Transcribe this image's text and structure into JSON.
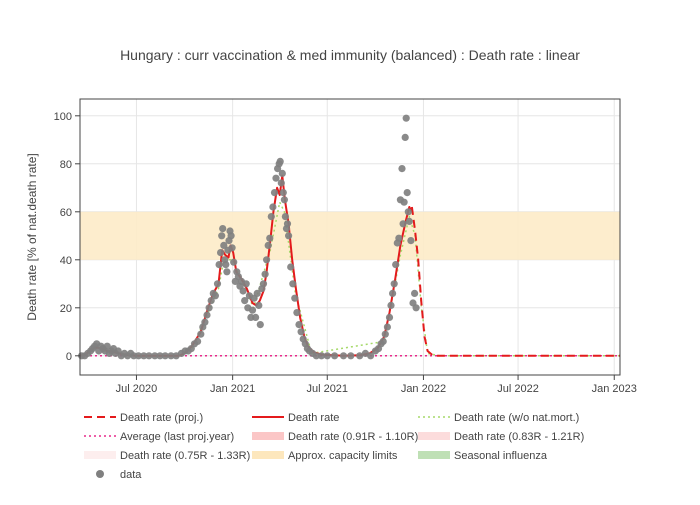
{
  "chart_data": {
    "type": "line",
    "title": "Hungary : curr vaccination & med immunity (balanced) : Death rate : linear",
    "ylabel": "Death rate [% of nat.death rate]",
    "xlabel": "",
    "ylim": [
      -8,
      107
    ],
    "xlim": [
      "2020-03-15",
      "2023-01-12"
    ],
    "y_ticks": [
      0,
      20,
      40,
      60,
      80,
      100
    ],
    "x_ticks": [
      {
        "date": "2020-07-01",
        "label": "Jul 2020"
      },
      {
        "date": "2021-01-01",
        "label": "Jan 2021"
      },
      {
        "date": "2021-07-01",
        "label": "Jul 2021"
      },
      {
        "date": "2022-01-01",
        "label": "Jan 2022"
      },
      {
        "date": "2022-07-01",
        "label": "Jul 2022"
      },
      {
        "date": "2023-01-01",
        "label": "Jan 2023"
      }
    ],
    "grid": true,
    "bands": [
      {
        "name": "Approx. capacity limits",
        "y0": 40,
        "y1": 60,
        "color": "#fdebc8"
      }
    ],
    "series": [
      {
        "name": "Death rate (proj.)",
        "color": "#e41a1c",
        "dash": "dash",
        "width": 2,
        "points": [
          [
            "2021-12-10",
            62
          ],
          [
            "2021-12-16",
            52
          ],
          [
            "2021-12-22",
            40
          ],
          [
            "2021-12-28",
            22
          ],
          [
            "2022-01-03",
            8
          ],
          [
            "2022-01-09",
            2
          ],
          [
            "2022-01-20",
            0
          ],
          [
            "2022-03-01",
            0
          ],
          [
            "2022-07-01",
            0
          ],
          [
            "2023-01-12",
            0
          ]
        ]
      },
      {
        "name": "Average (last proj.year)",
        "color": "#e7298a",
        "dash": "dot",
        "width": 1.5,
        "points": [
          [
            "2020-03-15",
            0
          ],
          [
            "2023-01-12",
            0
          ]
        ]
      },
      {
        "name": "Death rate (0.75R - 1.33R)",
        "color": "#fde0e0",
        "legend_only": true
      },
      {
        "name": "Death rate",
        "color": "#e41a1c",
        "dash": "solid",
        "width": 2,
        "points": [
          [
            "2020-03-15",
            0
          ],
          [
            "2020-03-25",
            0.5
          ],
          [
            "2020-04-05",
            2.5
          ],
          [
            "2020-04-15",
            3.5
          ],
          [
            "2020-04-25",
            3
          ],
          [
            "2020-05-05",
            2
          ],
          [
            "2020-05-20",
            1.5
          ],
          [
            "2020-06-01",
            0.8
          ],
          [
            "2020-06-15",
            0.3
          ],
          [
            "2020-07-01",
            0
          ],
          [
            "2020-09-01",
            0
          ],
          [
            "2020-09-20",
            0
          ],
          [
            "2020-10-01",
            1
          ],
          [
            "2020-10-15",
            4
          ],
          [
            "2020-11-01",
            10
          ],
          [
            "2020-11-15",
            20
          ],
          [
            "2020-11-25",
            26
          ],
          [
            "2020-12-05",
            30
          ],
          [
            "2020-12-12",
            44
          ],
          [
            "2020-12-18",
            42
          ],
          [
            "2020-12-24",
            41
          ],
          [
            "2020-12-28",
            46
          ],
          [
            "2021-01-02",
            43
          ],
          [
            "2021-01-08",
            35
          ],
          [
            "2021-01-18",
            32
          ],
          [
            "2021-01-28",
            28
          ],
          [
            "2021-02-08",
            22
          ],
          [
            "2021-02-15",
            21
          ],
          [
            "2021-02-22",
            23
          ],
          [
            "2021-03-01",
            27
          ],
          [
            "2021-03-07",
            35
          ],
          [
            "2021-03-14",
            48
          ],
          [
            "2021-03-20",
            60
          ],
          [
            "2021-03-27",
            70
          ],
          [
            "2021-04-01",
            67
          ],
          [
            "2021-04-06",
            75
          ],
          [
            "2021-04-11",
            65
          ],
          [
            "2021-04-18",
            55
          ],
          [
            "2021-04-25",
            40
          ],
          [
            "2021-05-02",
            28
          ],
          [
            "2021-05-10",
            16
          ],
          [
            "2021-05-18",
            8
          ],
          [
            "2021-05-25",
            4
          ],
          [
            "2021-06-05",
            1.5
          ],
          [
            "2021-06-20",
            0.5
          ],
          [
            "2021-08-01",
            0
          ],
          [
            "2021-09-01",
            0.2
          ],
          [
            "2021-09-20",
            1
          ],
          [
            "2021-10-05",
            3
          ],
          [
            "2021-10-18",
            8
          ],
          [
            "2021-10-28",
            18
          ],
          [
            "2021-11-08",
            32
          ],
          [
            "2021-11-18",
            46
          ],
          [
            "2021-11-28",
            56
          ],
          [
            "2021-12-05",
            62
          ],
          [
            "2021-12-10",
            60
          ]
        ]
      },
      {
        "name": "Death rate (0.91R - 1.10R)",
        "color": "#fbcaca",
        "legend_only": true
      },
      {
        "name": "Approx. capacity limits",
        "color": "#fde8c0",
        "legend_only": true
      },
      {
        "name": "Death rate (w/o nat.mort.)",
        "color": "#a6d96a",
        "dash": "dot",
        "width": 1.5,
        "points": [
          [
            "2020-10-15",
            3
          ],
          [
            "2020-11-15",
            18
          ],
          [
            "2020-12-05",
            28
          ],
          [
            "2020-12-15",
            40
          ],
          [
            "2021-01-01",
            40
          ],
          [
            "2021-02-10",
            20
          ],
          [
            "2021-03-14",
            44
          ],
          [
            "2021-04-01",
            64
          ],
          [
            "2021-04-10",
            60
          ],
          [
            "2021-05-01",
            26
          ],
          [
            "2021-06-01",
            1
          ],
          [
            "2021-10-18",
            6
          ],
          [
            "2021-11-18",
            42
          ],
          [
            "2021-12-05",
            58
          ],
          [
            "2021-12-16",
            50
          ],
          [
            "2021-12-28",
            20
          ],
          [
            "2022-01-09",
            1
          ],
          [
            "2022-02-01",
            0
          ],
          [
            "2023-01-12",
            0
          ]
        ]
      },
      {
        "name": "Death rate (0.83R - 1.21R)",
        "color": "#fcdcdc",
        "legend_only": true
      },
      {
        "name": "Seasonal influenza",
        "color": "#b8dcb0",
        "legend_only": true
      },
      {
        "name": "data",
        "type": "scatter",
        "color": "#808080",
        "points": [
          [
            "2020-03-18",
            0
          ],
          [
            "2020-03-24",
            0
          ],
          [
            "2020-03-30",
            1
          ],
          [
            "2020-04-04",
            2
          ],
          [
            "2020-04-08",
            3
          ],
          [
            "2020-04-12",
            4
          ],
          [
            "2020-04-16",
            5
          ],
          [
            "2020-04-20",
            2
          ],
          [
            "2020-04-24",
            4
          ],
          [
            "2020-04-28",
            3
          ],
          [
            "2020-05-02",
            2
          ],
          [
            "2020-05-06",
            4
          ],
          [
            "2020-05-10",
            1
          ],
          [
            "2020-05-14",
            2
          ],
          [
            "2020-05-18",
            3
          ],
          [
            "2020-05-22",
            1
          ],
          [
            "2020-05-27",
            2
          ],
          [
            "2020-06-02",
            0
          ],
          [
            "2020-06-08",
            1
          ],
          [
            "2020-06-14",
            0
          ],
          [
            "2020-06-20",
            1
          ],
          [
            "2020-06-26",
            0
          ],
          [
            "2020-07-05",
            0
          ],
          [
            "2020-07-15",
            0
          ],
          [
            "2020-07-25",
            0
          ],
          [
            "2020-08-05",
            0
          ],
          [
            "2020-08-15",
            0
          ],
          [
            "2020-08-25",
            0
          ],
          [
            "2020-09-05",
            0
          ],
          [
            "2020-09-15",
            0
          ],
          [
            "2020-09-25",
            1
          ],
          [
            "2020-10-02",
            2
          ],
          [
            "2020-10-08",
            2
          ],
          [
            "2020-10-14",
            3
          ],
          [
            "2020-10-20",
            5
          ],
          [
            "2020-10-26",
            6
          ],
          [
            "2020-11-01",
            9
          ],
          [
            "2020-11-05",
            12
          ],
          [
            "2020-11-09",
            14
          ],
          [
            "2020-11-13",
            17
          ],
          [
            "2020-11-17",
            20
          ],
          [
            "2020-11-21",
            23
          ],
          [
            "2020-11-25",
            26
          ],
          [
            "2020-11-29",
            25
          ],
          [
            "2020-12-03",
            30
          ],
          [
            "2020-12-06",
            38
          ],
          [
            "2020-12-09",
            43
          ],
          [
            "2020-12-11",
            50
          ],
          [
            "2020-12-13",
            53
          ],
          [
            "2020-12-15",
            46
          ],
          [
            "2020-12-17",
            40
          ],
          [
            "2020-12-19",
            38
          ],
          [
            "2020-12-21",
            35
          ],
          [
            "2020-12-23",
            44
          ],
          [
            "2020-12-25",
            48
          ],
          [
            "2020-12-27",
            52
          ],
          [
            "2020-12-29",
            50
          ],
          [
            "2020-12-31",
            45
          ],
          [
            "2021-01-03",
            39
          ],
          [
            "2021-01-06",
            31
          ],
          [
            "2021-01-09",
            35
          ],
          [
            "2021-01-12",
            33
          ],
          [
            "2021-01-15",
            29
          ],
          [
            "2021-01-18",
            31
          ],
          [
            "2021-01-21",
            27
          ],
          [
            "2021-01-24",
            23
          ],
          [
            "2021-01-27",
            30
          ],
          [
            "2021-01-30",
            20
          ],
          [
            "2021-02-02",
            25
          ],
          [
            "2021-02-05",
            16
          ],
          [
            "2021-02-08",
            19
          ],
          [
            "2021-02-11",
            24
          ],
          [
            "2021-02-14",
            16
          ],
          [
            "2021-02-17",
            26
          ],
          [
            "2021-02-20",
            21
          ],
          [
            "2021-02-23",
            13
          ],
          [
            "2021-02-26",
            28
          ],
          [
            "2021-03-01",
            30
          ],
          [
            "2021-03-04",
            34
          ],
          [
            "2021-03-07",
            40
          ],
          [
            "2021-03-10",
            46
          ],
          [
            "2021-03-13",
            49
          ],
          [
            "2021-03-16",
            58
          ],
          [
            "2021-03-19",
            62
          ],
          [
            "2021-03-22",
            68
          ],
          [
            "2021-03-25",
            74
          ],
          [
            "2021-03-28",
            78
          ],
          [
            "2021-03-31",
            80
          ],
          [
            "2021-04-02",
            81
          ],
          [
            "2021-04-04",
            72
          ],
          [
            "2021-04-06",
            76
          ],
          [
            "2021-04-08",
            68
          ],
          [
            "2021-04-10",
            65
          ],
          [
            "2021-04-12",
            58
          ],
          [
            "2021-04-14",
            53
          ],
          [
            "2021-04-16",
            55
          ],
          [
            "2021-04-18",
            50
          ],
          [
            "2021-04-22",
            37
          ],
          [
            "2021-04-26",
            30
          ],
          [
            "2021-04-30",
            24
          ],
          [
            "2021-05-04",
            18
          ],
          [
            "2021-05-08",
            13
          ],
          [
            "2021-05-12",
            10
          ],
          [
            "2021-05-16",
            7
          ],
          [
            "2021-05-20",
            5
          ],
          [
            "2021-05-24",
            3
          ],
          [
            "2021-05-28",
            2
          ],
          [
            "2021-06-03",
            1
          ],
          [
            "2021-06-10",
            0
          ],
          [
            "2021-06-20",
            0
          ],
          [
            "2021-07-01",
            0
          ],
          [
            "2021-07-15",
            0
          ],
          [
            "2021-08-01",
            0
          ],
          [
            "2021-08-15",
            0
          ],
          [
            "2021-09-01",
            0
          ],
          [
            "2021-09-12",
            1
          ],
          [
            "2021-09-22",
            0
          ],
          [
            "2021-10-01",
            2
          ],
          [
            "2021-10-07",
            3
          ],
          [
            "2021-10-12",
            5
          ],
          [
            "2021-10-16",
            6
          ],
          [
            "2021-10-20",
            9
          ],
          [
            "2021-10-24",
            12
          ],
          [
            "2021-10-28",
            16
          ],
          [
            "2021-10-31",
            21
          ],
          [
            "2021-11-03",
            26
          ],
          [
            "2021-11-06",
            30
          ],
          [
            "2021-11-09",
            38
          ],
          [
            "2021-11-12",
            47
          ],
          [
            "2021-11-15",
            49
          ],
          [
            "2021-11-18",
            65
          ],
          [
            "2021-11-21",
            78
          ],
          [
            "2021-11-23",
            55
          ],
          [
            "2021-11-25",
            64
          ],
          [
            "2021-11-27",
            91
          ],
          [
            "2021-11-29",
            99
          ],
          [
            "2021-12-01",
            68
          ],
          [
            "2021-12-03",
            60
          ],
          [
            "2021-12-05",
            56
          ],
          [
            "2021-12-08",
            48
          ],
          [
            "2021-12-12",
            22
          ],
          [
            "2021-12-15",
            26
          ],
          [
            "2021-12-18",
            20
          ]
        ]
      }
    ],
    "legend": [
      {
        "name": "Death rate (proj.)",
        "style": "dash-red"
      },
      {
        "name": "Death rate",
        "style": "solid-red"
      },
      {
        "name": "Death rate (w/o nat.mort.)",
        "style": "dot-green"
      },
      {
        "name": "Average (last proj.year)",
        "style": "dot-pink"
      },
      {
        "name": "Death rate (0.91R - 1.10R)",
        "style": "band-red1"
      },
      {
        "name": "Death rate (0.83R - 1.21R)",
        "style": "band-red2"
      },
      {
        "name": "Death rate (0.75R - 1.33R)",
        "style": "band-red3"
      },
      {
        "name": "Approx. capacity limits",
        "style": "band-orange"
      },
      {
        "name": "Seasonal influenza",
        "style": "band-green"
      },
      {
        "name": "data",
        "style": "marker-gray"
      }
    ],
    "legend_placement": "bottom"
  }
}
